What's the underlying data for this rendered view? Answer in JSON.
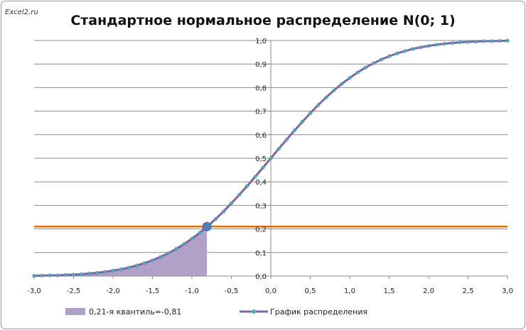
{
  "watermark": "Excel2.ru",
  "chart_data": {
    "type": "line",
    "title": "Стандартное нормальное распределение N(0; 1)",
    "xlim": [
      -3.0,
      3.0
    ],
    "ylim": [
      0.0,
      1.0
    ],
    "x_ticks": [
      "-3,0",
      "-2,5",
      "-2,0",
      "-1,5",
      "-1,0",
      "-0,5",
      "0,0",
      "0,5",
      "1,0",
      "1,5",
      "2,0",
      "2,5",
      "3,0"
    ],
    "y_ticks": [
      "0,0",
      "0,1",
      "0,2",
      "0,3",
      "0,4",
      "0,5",
      "0,6",
      "0,7",
      "0,8",
      "0,9",
      "1,0"
    ],
    "grid": "horizontal",
    "legend_position": "bottom",
    "series": [
      {
        "name": "График распределения",
        "color": "#8064a2",
        "marker_color": "#4bacc6",
        "x": [
          -3.0,
          -2.9,
          -2.8,
          -2.7,
          -2.6,
          -2.5,
          -2.4,
          -2.3,
          -2.2,
          -2.1,
          -2.0,
          -1.9,
          -1.8,
          -1.7,
          -1.6,
          -1.5,
          -1.4,
          -1.3,
          -1.2,
          -1.1,
          -1.0,
          -0.9,
          -0.8,
          -0.7,
          -0.6,
          -0.5,
          -0.4,
          -0.3,
          -0.2,
          -0.1,
          0.0,
          0.1,
          0.2,
          0.3,
          0.4,
          0.5,
          0.6,
          0.7,
          0.8,
          0.9,
          1.0,
          1.1,
          1.2,
          1.3,
          1.4,
          1.5,
          1.6,
          1.7,
          1.8,
          1.9,
          2.0,
          2.1,
          2.2,
          2.3,
          2.4,
          2.5,
          2.6,
          2.7,
          2.8,
          2.9,
          3.0
        ],
        "y": [
          0.001,
          0.002,
          0.003,
          0.003,
          0.005,
          0.006,
          0.008,
          0.011,
          0.014,
          0.018,
          0.023,
          0.029,
          0.036,
          0.045,
          0.055,
          0.067,
          0.081,
          0.097,
          0.115,
          0.136,
          0.159,
          0.184,
          0.212,
          0.242,
          0.274,
          0.309,
          0.345,
          0.382,
          0.421,
          0.46,
          0.5,
          0.54,
          0.579,
          0.618,
          0.655,
          0.691,
          0.726,
          0.758,
          0.788,
          0.816,
          0.841,
          0.864,
          0.885,
          0.903,
          0.919,
          0.933,
          0.945,
          0.955,
          0.964,
          0.971,
          0.977,
          0.982,
          0.986,
          0.989,
          0.992,
          0.994,
          0.995,
          0.997,
          0.997,
          0.998,
          0.999
        ]
      },
      {
        "name": "0,21-я квантиль=-0,81",
        "type": "area",
        "color": "#b1a0c7",
        "x_range": [
          -3.0,
          -0.81
        ]
      }
    ],
    "reference_line": {
      "y": 0.21,
      "color": "#e46c0a"
    },
    "highlight_point": {
      "x": -0.81,
      "y": 0.21,
      "color": "#4f81bd"
    }
  }
}
